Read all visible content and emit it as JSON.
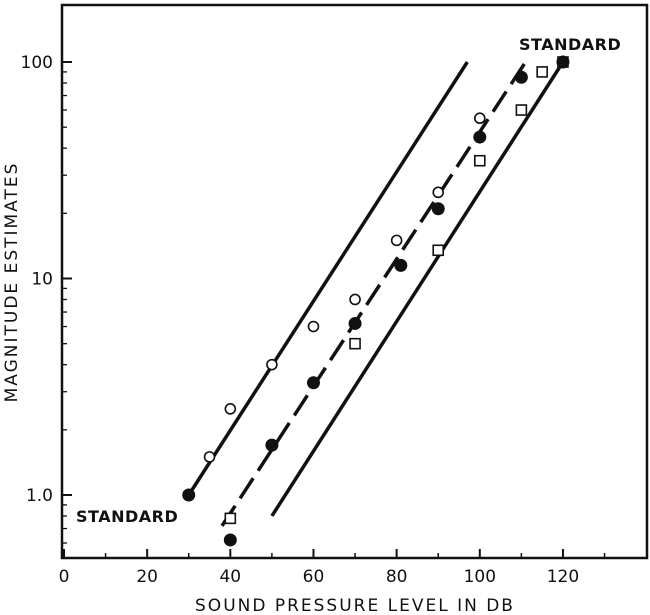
{
  "chart_data": {
    "type": "scatter",
    "xlabel": "SOUND PRESSURE LEVEL IN DB",
    "ylabel": "MAGNITUDE ESTIMATES",
    "xlim": [
      0,
      140
    ],
    "ylim": [
      0.5,
      200
    ],
    "y_scale": "log",
    "grid": false,
    "x_ticks": [
      {
        "value": 0,
        "label": "0"
      },
      {
        "value": 20,
        "label": "20"
      },
      {
        "value": 40,
        "label": "40"
      },
      {
        "value": 60,
        "label": "60"
      },
      {
        "value": 80,
        "label": "80"
      },
      {
        "value": 100,
        "label": "100"
      },
      {
        "value": 120,
        "label": "120"
      }
    ],
    "y_ticks": [
      {
        "value": 1,
        "label": "1.0"
      },
      {
        "value": 10,
        "label": "10"
      },
      {
        "value": 100,
        "label": "100"
      }
    ],
    "series": [
      {
        "marker": "open-circle",
        "points": [
          [
            30,
            1.0
          ],
          [
            35,
            1.5
          ],
          [
            40,
            2.5
          ],
          [
            50,
            4.0
          ],
          [
            60,
            6.0
          ],
          [
            70,
            8.0
          ],
          [
            80,
            15
          ],
          [
            90,
            25
          ],
          [
            100,
            55
          ],
          [
            110,
            85
          ]
        ]
      },
      {
        "marker": "filled-circle",
        "points": [
          [
            30,
            1.0
          ],
          [
            40,
            0.62
          ],
          [
            50,
            1.7
          ],
          [
            60,
            3.3
          ],
          [
            70,
            6.2
          ],
          [
            81,
            11.5
          ],
          [
            90,
            21
          ],
          [
            100,
            45
          ],
          [
            110,
            85
          ],
          [
            120,
            100
          ]
        ]
      },
      {
        "marker": "open-square",
        "points": [
          [
            40,
            0.78
          ],
          [
            70,
            5.0
          ],
          [
            90,
            13.5
          ],
          [
            100,
            35
          ],
          [
            110,
            60
          ],
          [
            115,
            90
          ],
          [
            120,
            100
          ]
        ]
      }
    ],
    "lines": [
      {
        "style": "solid",
        "from": [
          30,
          1.0
        ],
        "to": [
          97,
          100
        ]
      },
      {
        "style": "dashed",
        "from": [
          38,
          0.72
        ],
        "to": [
          111,
          100
        ]
      },
      {
        "style": "solid",
        "from": [
          50,
          0.8
        ],
        "to": [
          120,
          100
        ]
      }
    ],
    "annotations": [
      {
        "text": "STANDARD",
        "near": "lower-left"
      },
      {
        "text": "STANDARD",
        "near": "top-right"
      }
    ]
  }
}
